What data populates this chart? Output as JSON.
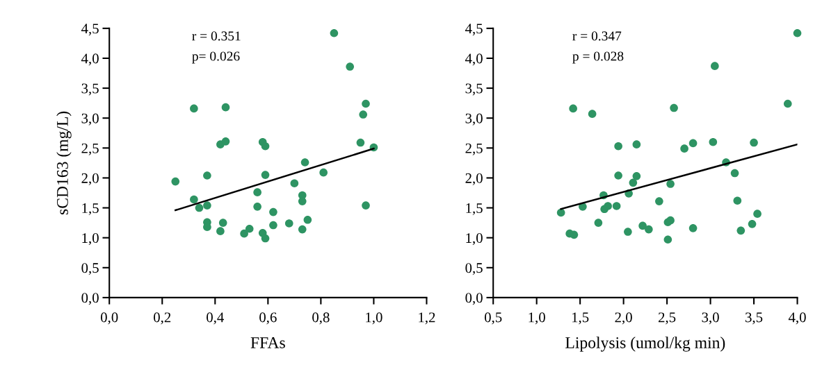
{
  "chart_data": [
    {
      "type": "scatter",
      "xlabel": "FFAs",
      "ylabel": "sCD163 (mg/L)",
      "annotations": [
        "r = 0.351",
        "p= 0.026"
      ],
      "xlim": [
        0,
        1.2
      ],
      "ylim": [
        0,
        4.5
      ],
      "xticks": [
        {
          "value": 0,
          "label": "0,0"
        },
        {
          "value": 0.2,
          "label": "0,2"
        },
        {
          "value": 0.4,
          "label": "0,4"
        },
        {
          "value": 0.6,
          "label": "0,6"
        },
        {
          "value": 0.8,
          "label": "0,8"
        },
        {
          "value": 1.0,
          "label": "1,0"
        },
        {
          "value": 1.2,
          "label": "1,2"
        }
      ],
      "yticks": [
        {
          "value": 0,
          "label": "0,0"
        },
        {
          "value": 0.5,
          "label": "0,5"
        },
        {
          "value": 1.0,
          "label": "1,0"
        },
        {
          "value": 1.5,
          "label": "1,5"
        },
        {
          "value": 2.0,
          "label": "2,0"
        },
        {
          "value": 2.5,
          "label": "2,5"
        },
        {
          "value": 3.0,
          "label": "3,0"
        },
        {
          "value": 3.5,
          "label": "3,5"
        },
        {
          "value": 4.0,
          "label": "4,0"
        },
        {
          "value": 4.5,
          "label": "4,5"
        }
      ],
      "grid": false,
      "legend": false,
      "marker": "circle",
      "series": [
        {
          "color": "#2e9463",
          "x": [
            0.25,
            0.32,
            0.34,
            0.32,
            0.37,
            0.37,
            0.37,
            0.37,
            0.42,
            0.43,
            0.42,
            0.44,
            0.44,
            0.51,
            0.53,
            0.56,
            0.56,
            0.58,
            0.59,
            0.59,
            0.58,
            0.59,
            0.62,
            0.62,
            0.68,
            0.7,
            0.74,
            0.73,
            0.73,
            0.75,
            0.73,
            0.81,
            0.85,
            0.91,
            0.97,
            0.96,
            0.95,
            1.0,
            0.97
          ],
          "values": [
            1.94,
            1.64,
            1.5,
            3.16,
            2.04,
            1.54,
            1.26,
            1.18,
            1.11,
            1.25,
            2.56,
            2.61,
            3.18,
            1.07,
            1.15,
            1.76,
            1.52,
            2.6,
            2.53,
            2.05,
            1.08,
            0.99,
            1.43,
            1.21,
            1.24,
            1.91,
            2.26,
            1.71,
            1.61,
            1.3,
            1.14,
            2.09,
            4.42,
            3.86,
            3.24,
            3.06,
            2.59,
            2.51,
            1.54
          ]
        },
        {
          "type": "line",
          "color": "#000000",
          "marker": "none",
          "x": [
            0.25,
            1.0
          ],
          "values": [
            1.46,
            2.49
          ]
        }
      ]
    },
    {
      "type": "scatter",
      "xlabel": "Lipolysis (umol/kg min)",
      "annotations": [
        "r = 0.347",
        "p = 0.028"
      ],
      "xlim": [
        0.5,
        4.0
      ],
      "ylim": [
        0,
        4.5
      ],
      "xticks": [
        {
          "value": 0.5,
          "label": "0,5"
        },
        {
          "value": 1.0,
          "label": "1,0"
        },
        {
          "value": 1.5,
          "label": "1,5"
        },
        {
          "value": 2.0,
          "label": "2,0"
        },
        {
          "value": 2.5,
          "label": "2,5"
        },
        {
          "value": 3.0,
          "label": "3,0"
        },
        {
          "value": 3.5,
          "label": "3,5"
        },
        {
          "value": 4.0,
          "label": "4,0"
        }
      ],
      "yticks": [
        {
          "value": 0,
          "label": "0,0"
        },
        {
          "value": 0.5,
          "label": "0,5"
        },
        {
          "value": 1.0,
          "label": "1,0"
        },
        {
          "value": 1.5,
          "label": "1,5"
        },
        {
          "value": 2.0,
          "label": "2,0"
        },
        {
          "value": 2.5,
          "label": "2,5"
        },
        {
          "value": 3.0,
          "label": "3,0"
        },
        {
          "value": 3.5,
          "label": "3,5"
        },
        {
          "value": 4.0,
          "label": "4,0"
        },
        {
          "value": 4.5,
          "label": "4,5"
        }
      ],
      "grid": false,
      "legend": false,
      "marker": "circle",
      "series": [
        {
          "color": "#2e9463",
          "x": [
            1.28,
            1.38,
            1.43,
            1.42,
            1.53,
            1.64,
            1.71,
            1.77,
            1.78,
            1.82,
            1.92,
            1.94,
            1.94,
            2.05,
            2.06,
            2.11,
            2.15,
            2.15,
            2.22,
            2.29,
            2.41,
            2.51,
            2.51,
            2.54,
            2.54,
            2.58,
            2.7,
            2.8,
            2.8,
            3.03,
            3.05,
            3.18,
            3.28,
            3.31,
            3.35,
            3.48,
            3.5,
            3.54,
            3.89,
            4.0
          ],
          "values": [
            1.42,
            1.07,
            1.05,
            3.16,
            1.52,
            3.07,
            1.25,
            1.71,
            1.48,
            1.53,
            1.53,
            2.53,
            2.04,
            1.1,
            1.74,
            1.92,
            2.03,
            2.56,
            1.2,
            1.14,
            1.61,
            0.97,
            1.26,
            1.29,
            1.9,
            3.17,
            2.49,
            2.58,
            1.16,
            2.6,
            3.87,
            2.26,
            2.08,
            1.62,
            1.12,
            1.23,
            2.59,
            1.4,
            3.24,
            4.42
          ]
        },
        {
          "type": "line",
          "color": "#000000",
          "marker": "none",
          "x": [
            1.28,
            4.0
          ],
          "values": [
            1.48,
            2.56
          ]
        }
      ]
    }
  ]
}
